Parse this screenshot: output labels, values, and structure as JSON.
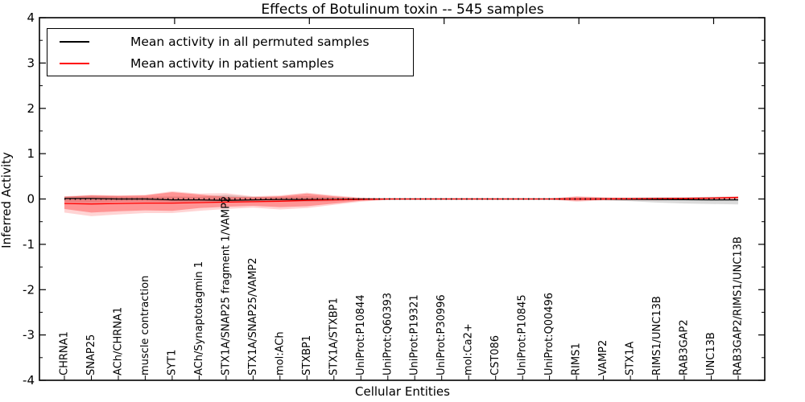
{
  "chart_data": {
    "type": "line",
    "title": "Effects of Botulinum toxin -- 545 samples",
    "xlabel": "Cellular Entities",
    "ylabel": "Inferred Activity",
    "ylim": [
      -4,
      4
    ],
    "yticks": [
      4,
      3,
      2,
      1,
      0,
      -1,
      -2,
      -3,
      -4
    ],
    "y_minor_step": 0.5,
    "grid": false,
    "legend_position": "upper left",
    "x_top_tick_indices": [
      4,
      9,
      14,
      19,
      24
    ],
    "categories": [
      "CHRNA1",
      "SNAP25",
      "ACh/CHRNA1",
      "muscle contraction",
      "SYT1",
      "ACh/Synaptotagmin 1",
      "STX1A/SNAP25 fragment 1/VAMP2",
      "STX1A/SNAP25/VAMP2",
      "mol:ACh",
      "STXBP1",
      "STX1A/STXBP1",
      "UniProt:P10844",
      "UniProt:Q60393",
      "UniProt:P19321",
      "UniProt:P30996",
      "mol:Ca2+",
      "CST086",
      "UniProt:P10845",
      "UniProt:Q00496",
      "RIMS1",
      "VAMP2",
      "STX1A",
      "RIMS1/UNC13B",
      "RAB3GAP2",
      "UNC13B",
      "RAB3GAP2/RIMS1/UNC13B"
    ],
    "series": [
      {
        "name": "Mean activity in all permuted samples",
        "color": "#000000",
        "values": [
          0.01,
          0.01,
          0.0,
          0.0,
          -0.02,
          -0.02,
          -0.03,
          -0.02,
          -0.01,
          -0.01,
          -0.01,
          0.0,
          0.0,
          0.0,
          0.0,
          0.0,
          0.0,
          0.0,
          0.0,
          0.0,
          0.0,
          -0.005,
          -0.01,
          -0.015,
          -0.02,
          -0.02
        ]
      },
      {
        "name": "Mean activity in patient samples",
        "color": "#ff0000",
        "values": [
          -0.1,
          -0.11,
          -0.1,
          -0.09,
          -0.09,
          -0.08,
          -0.07,
          -0.06,
          -0.05,
          -0.03,
          -0.02,
          -0.01,
          0.0,
          0.0,
          0.0,
          0.0,
          0.0,
          0.0,
          0.0,
          0.0,
          0.0,
          0.005,
          0.01,
          0.015,
          0.02,
          0.035
        ]
      }
    ],
    "bands": [
      {
        "name": "permuted-range",
        "color": "rgba(0,0,0,0.14)",
        "upper": [
          0.055,
          0.07,
          0.055,
          0.05,
          0.055,
          0.05,
          0.09,
          0.05,
          0.05,
          0.06,
          0.04,
          0.015,
          0.01,
          0.01,
          0.01,
          0.01,
          0.01,
          0.01,
          0.01,
          0.015,
          0.02,
          0.03,
          0.04,
          0.04,
          0.05,
          0.05
        ],
        "lower": [
          -0.065,
          -0.08,
          -0.06,
          -0.06,
          -0.07,
          -0.06,
          -0.06,
          -0.05,
          -0.06,
          -0.06,
          -0.05,
          -0.02,
          -0.01,
          -0.01,
          -0.01,
          -0.01,
          -0.01,
          -0.01,
          -0.01,
          -0.02,
          -0.03,
          -0.05,
          -0.08,
          -0.1,
          -0.11,
          -0.12
        ]
      },
      {
        "name": "patient-range-outer",
        "color": "rgba(255,0,0,0.17)",
        "upper": [
          0.06,
          0.09,
          0.08,
          0.09,
          0.17,
          0.12,
          0.13,
          0.06,
          0.08,
          0.14,
          0.08,
          0.03,
          0.015,
          0.01,
          0.01,
          0.01,
          0.01,
          0.01,
          0.01,
          0.06,
          0.04,
          0.03,
          0.03,
          0.03,
          0.04,
          0.06
        ],
        "lower": [
          -0.3,
          -0.38,
          -0.34,
          -0.31,
          -0.31,
          -0.26,
          -0.22,
          -0.19,
          -0.23,
          -0.2,
          -0.13,
          -0.06,
          -0.02,
          -0.01,
          -0.01,
          -0.01,
          -0.01,
          -0.01,
          -0.01,
          -0.06,
          -0.03,
          -0.03,
          -0.03,
          -0.02,
          -0.02,
          -0.01
        ]
      },
      {
        "name": "patient-range",
        "color": "rgba(255,0,0,0.30)",
        "upper": [
          0.05,
          0.08,
          0.07,
          0.08,
          0.15,
          0.1,
          0.05,
          0.04,
          0.06,
          0.12,
          0.06,
          0.02,
          0.01,
          0.01,
          0.01,
          0.01,
          0.01,
          0.01,
          0.01,
          0.05,
          0.03,
          0.02,
          0.02,
          0.025,
          0.035,
          0.05
        ],
        "lower": [
          -0.22,
          -0.3,
          -0.27,
          -0.25,
          -0.26,
          -0.2,
          -0.17,
          -0.15,
          -0.18,
          -0.16,
          -0.1,
          -0.04,
          -0.015,
          -0.01,
          -0.01,
          -0.01,
          -0.01,
          -0.01,
          -0.01,
          -0.04,
          -0.02,
          -0.02,
          -0.02,
          -0.01,
          0.0,
          0.01
        ]
      }
    ],
    "zero_line": {
      "y": 0,
      "style": "dotted",
      "color": "#000000"
    }
  },
  "legend": {
    "items": [
      {
        "label": "Mean activity in all permuted samples",
        "color": "#000000"
      },
      {
        "label": "Mean activity in patient samples",
        "color": "#ff0000"
      }
    ]
  }
}
